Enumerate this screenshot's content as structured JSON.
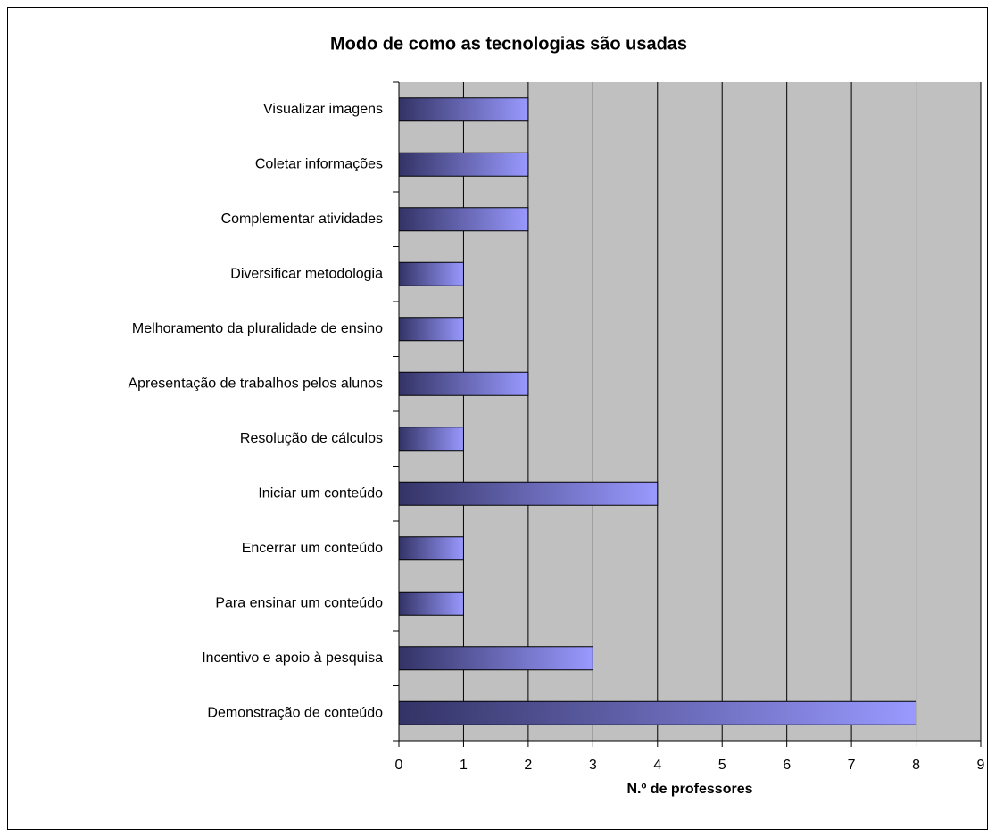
{
  "chart_data": {
    "type": "bar",
    "orientation": "horizontal",
    "title": "Modo de como as tecnologias são usadas",
    "x_label": "N.º de professores",
    "categories": [
      "Visualizar imagens",
      "Coletar informações",
      "Complementar atividades",
      "Diversificar metodologia",
      "Melhoramento da pluralidade de ensino",
      "Apresentação de trabalhos pelos alunos",
      "Resolução de cálculos",
      "Iniciar um conteúdo",
      "Encerrar um conteúdo",
      "Para ensinar um conteúdo",
      "Incentivo e apoio à pesquisa",
      "Demonstração de conteúdo"
    ],
    "values": [
      2,
      2,
      2,
      1,
      1,
      2,
      1,
      4,
      1,
      1,
      3,
      8
    ],
    "gradient": [
      "#333366",
      "#9999ff"
    ],
    "plot_background": "#c0c0c0",
    "xlim": [
      0,
      9
    ],
    "xticks": [
      0,
      1,
      2,
      3,
      4,
      5,
      6,
      7,
      8,
      9
    ],
    "grid": true
  }
}
